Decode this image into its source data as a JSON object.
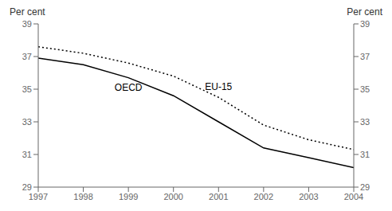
{
  "chart_data": {
    "type": "line",
    "x": [
      1997,
      1998,
      1999,
      2000,
      2001,
      2002,
      2003,
      2004
    ],
    "series": [
      {
        "name": "OECD",
        "color": "#000000",
        "line_style": "solid",
        "values": [
          36.9,
          36.5,
          35.7,
          34.6,
          33.0,
          31.4,
          30.8,
          30.2
        ]
      },
      {
        "name": "EU-15",
        "color": "#000000",
        "line_style": "dotted",
        "values": [
          37.6,
          37.2,
          36.6,
          35.8,
          34.5,
          32.8,
          31.9,
          31.3
        ]
      }
    ],
    "xlim": [
      1997,
      2004
    ],
    "xticks": [
      1997,
      1998,
      1999,
      2000,
      2001,
      2002,
      2003,
      2004
    ],
    "ylim": [
      29,
      39
    ],
    "yticks": [
      29,
      31,
      33,
      35,
      37,
      39
    ],
    "y2lim": [
      29,
      39
    ],
    "y2ticks": [
      29,
      31,
      33,
      35,
      37,
      39
    ],
    "y_label": "Per cent",
    "y2_label": "Per cent",
    "grid": false
  }
}
